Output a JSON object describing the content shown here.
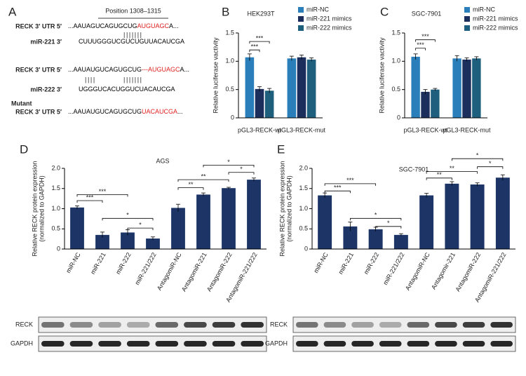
{
  "sequence_panel": {
    "panel": "A",
    "position": "Position 1308–1315",
    "rows": [
      {
        "label": "RECK 3′ UTR 5′",
        "segments": [
          {
            "text": "...AAUAGUCAGUGCUG",
            "color": "#000000"
          },
          {
            "text": "AUGUAGC",
            "color": "#e02020"
          },
          {
            "text": "A...",
            "color": "#000000"
          }
        ]
      },
      {
        "label": null,
        "segments": [
          {
            "text": "|||||||",
            "color": "#000000"
          }
        ]
      },
      {
        "label": "miR-221 3′",
        "segments": [
          {
            "text": "CUUUGGGUCGUCUGUUACAUCGA",
            "color": "#000000"
          }
        ]
      },
      {
        "label": "RECK 3′ UTR 5′",
        "segments": [
          {
            "text": "...AAUAUGUCAGUGCUG",
            "color": "#000000"
          },
          {
            "text": "---AUGUAGC",
            "color": "#e02020"
          },
          {
            "text": "A...",
            "color": "#000000"
          }
        ]
      },
      {
        "label": null,
        "segments": [
          {
            "text": "||||",
            "color": "#000000"
          },
          {
            "text": "|||||||",
            "color": "#000000"
          }
        ]
      },
      {
        "label": "miR-222 3′",
        "segments": [
          {
            "text": "UGGGUCACUGGUCUACAUCGA",
            "color": "#000000"
          }
        ]
      },
      {
        "label": "RECK 3′ UTR 5′",
        "note": "Mutant",
        "segments": [
          {
            "text": "...AAUAUGUCAGUGCUG",
            "color": "#000000"
          },
          {
            "text": "UACAUCGA",
            "color": "#e02020"
          },
          {
            "text": "...",
            "color": "#000000"
          }
        ]
      }
    ]
  },
  "chart_data": [
    {
      "type": "bar",
      "panel": "B",
      "title": "HEK293T",
      "ylabel": [
        "Relative luciferase vactivity"
      ],
      "categories": [
        "pGL3-RECK-wt",
        "pGL3-RECK-mut"
      ],
      "series": [
        {
          "name": "miR-NC",
          "color": "#2a7fba",
          "values": [
            1.07,
            1.05
          ],
          "errors": [
            0.06,
            0.04
          ]
        },
        {
          "name": "miR-221 mimics",
          "color": "#1c2f5c",
          "values": [
            0.51,
            1.07
          ],
          "errors": [
            0.04,
            0.04
          ]
        },
        {
          "name": "miR-222 mimics",
          "color": "#1f5f7e",
          "values": [
            0.48,
            1.03
          ],
          "errors": [
            0.04,
            0.03
          ]
        }
      ],
      "ylim": [
        0,
        1.5
      ],
      "yticks": [
        0,
        0.5,
        {
          "value": 1,
          "label": "1.0"
        },
        1.5
      ],
      "annotations": [
        "***",
        "***"
      ]
    },
    {
      "type": "bar",
      "panel": "C",
      "title": "SGC-7901",
      "ylabel": [
        "Relative luciferase vactivity"
      ],
      "categories": [
        "pGL3-RECK-wt",
        "pGL3-RECK-mut"
      ],
      "series": [
        {
          "name": "miR-NC",
          "color": "#2a7fba",
          "values": [
            1.08,
            1.05
          ],
          "errors": [
            0.05,
            0.05
          ]
        },
        {
          "name": "miR-221 mimics",
          "color": "#1c2f5c",
          "values": [
            0.46,
            1.03
          ],
          "errors": [
            0.04,
            0.03
          ]
        },
        {
          "name": "miR-222 mimics",
          "color": "#1f5f7e",
          "values": [
            0.5,
            1.05
          ],
          "errors": [
            0.02,
            0.03
          ]
        }
      ],
      "ylim": [
        0,
        1.5
      ],
      "yticks": [
        0,
        0.5,
        {
          "value": 1,
          "label": "1.0"
        },
        1.5
      ],
      "annotations": [
        "***",
        "***"
      ]
    },
    {
      "type": "bar",
      "panel": "D",
      "title": "AGS",
      "ylabel": [
        "Relative RECK protein expression",
        "(normalized to GAPDH)"
      ],
      "categories": [
        "miR-NC",
        "miR-221",
        "miR-222",
        "miR-221/222",
        "AntagomiR-NC",
        "AntagomiR-221",
        "AntagomiR-222",
        "AntagomiR-221/222"
      ],
      "series": [
        {
          "name": null,
          "color": "#1c3566",
          "values": [
            1.03,
            0.35,
            0.41,
            0.26,
            1.02,
            1.35,
            1.51,
            1.72
          ],
          "errors": [
            0.04,
            0.07,
            0.07,
            0.04,
            0.09,
            0.04,
            0.02,
            0.04
          ]
        }
      ],
      "ylim": [
        0,
        2
      ],
      "yticks": [
        0,
        0.5,
        {
          "value": 1,
          "label": "1.0"
        },
        1.5,
        {
          "value": 2,
          "label": "2.0"
        }
      ],
      "annotations": [
        "***",
        "***",
        "*",
        "*",
        "**",
        "**",
        "*",
        "*"
      ]
    },
    {
      "type": "bar",
      "panel": "E",
      "title": "SGC-7901",
      "ylabel": [
        "Relative RECK protein expression",
        "(normalized to GAPDH)"
      ],
      "categories": [
        "miR-NC",
        "miR-221",
        "miR-222",
        "miR-221/222",
        "AntagomiR-NC",
        "Antagomir-221",
        "AntagomiR-222",
        "AntagomiR-221/222"
      ],
      "series": [
        {
          "name": null,
          "color": "#1c3566",
          "values": [
            1.33,
            0.56,
            0.49,
            0.35,
            1.33,
            1.62,
            1.6,
            1.77
          ],
          "errors": [
            0.06,
            0.11,
            0.05,
            0.03,
            0.05,
            0.05,
            0.04,
            0.07
          ]
        }
      ],
      "ylim": [
        0,
        2
      ],
      "yticks": [
        0,
        0.5,
        {
          "value": 1,
          "label": "1.0"
        },
        1.5,
        {
          "value": 2,
          "label": "2.0"
        }
      ],
      "annotations": [
        "***",
        "***",
        "*",
        "*",
        "**",
        "**",
        "*",
        "*"
      ]
    }
  ],
  "blots": [
    {
      "labels": [
        "RECK",
        "GAPDH"
      ]
    },
    {
      "labels": [
        "RECK",
        "GAPDH"
      ]
    }
  ]
}
